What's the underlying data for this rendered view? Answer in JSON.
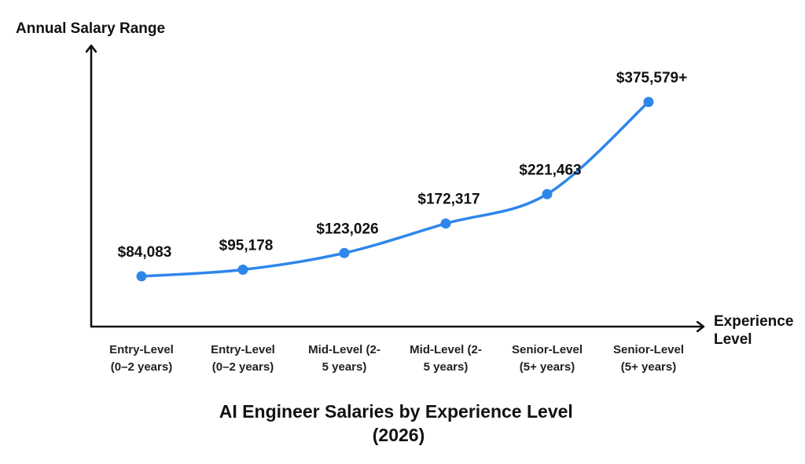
{
  "chart_data": {
    "type": "line",
    "title_lines": [
      "AI Engineer Salaries by Experience Level",
      "(2026)"
    ],
    "ylabel": "Annual Salary Range",
    "xlabel_lines": [
      "Experience",
      "Level"
    ],
    "categories": [
      [
        "Entry-Level",
        "(0–2 years)"
      ],
      [
        "Entry-Level",
        "(0–2 years)"
      ],
      [
        "Mid-Level (2-",
        "5 years)"
      ],
      [
        "Mid-Level (2-",
        "5 years)"
      ],
      [
        "Senior-Level",
        "(5+ years)"
      ],
      [
        "Senior-Level",
        "(5+ years)"
      ]
    ],
    "values": [
      84083,
      95178,
      123026,
      172317,
      221463,
      375579
    ],
    "data_labels": [
      "$84,083",
      "$95,178",
      "$123,026",
      "$172,317",
      "$221,463",
      "$375,579+"
    ],
    "ylim": [
      0,
      420000
    ],
    "grid": false,
    "legend": "none",
    "colors": {
      "line": "#2f86eb",
      "axis": "#111111"
    }
  }
}
